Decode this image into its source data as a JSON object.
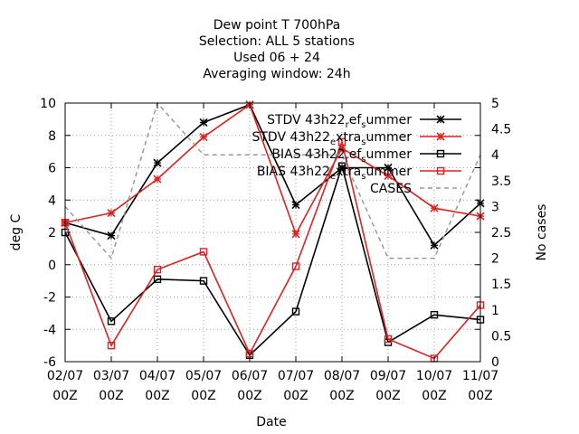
{
  "chart_data": {
    "type": "line",
    "title_lines": [
      "Dew point T 700hPa",
      "Selection: ALL       5 stations",
      "Used  06  + 24",
      "Averaging window: 24h"
    ],
    "xlabel": "Date",
    "ylabel": "deg C",
    "y2label": "No cases",
    "x_ticks": [
      {
        "date": "02/07",
        "time": "00Z"
      },
      {
        "date": "03/07",
        "time": "00Z"
      },
      {
        "date": "04/07",
        "time": "00Z"
      },
      {
        "date": "05/07",
        "time": "00Z"
      },
      {
        "date": "06/07",
        "time": "00Z"
      },
      {
        "date": "07/07",
        "time": "00Z"
      },
      {
        "date": "08/07",
        "time": "00Z"
      },
      {
        "date": "09/07",
        "time": "00Z"
      },
      {
        "date": "10/07",
        "time": "00Z"
      },
      {
        "date": "11/07",
        "time": "00Z"
      }
    ],
    "ylim": [
      -6,
      10
    ],
    "y_ticks": [
      "-6",
      "-4",
      "-2",
      "0",
      "2",
      "4",
      "6",
      "8",
      "10"
    ],
    "y2lim": [
      0,
      5
    ],
    "y2_ticks": [
      "0",
      "0.5",
      "1",
      "1.5",
      "2",
      "2.5",
      "3",
      "3.5",
      "4",
      "4.5",
      "5"
    ],
    "grid": true,
    "legend_position": "top-right",
    "series": [
      {
        "name": "STDV 43h22 ref summer",
        "legend_parts": [
          [
            "STDV 43h22",
            "n"
          ],
          [
            "r",
            "sub"
          ],
          [
            "ef",
            "n"
          ],
          [
            "s",
            "sub"
          ],
          [
            "ummer",
            "n"
          ]
        ],
        "color": "#000000",
        "marker": "x",
        "dash": false,
        "axis": "y1",
        "x": [
          0,
          1,
          2,
          3,
          4,
          5,
          6,
          7,
          8,
          9
        ],
        "values": [
          2.6,
          1.8,
          6.3,
          8.8,
          9.9,
          3.7,
          6.0,
          6.0,
          1.2,
          3.8
        ]
      },
      {
        "name": "STDV 43h22 extra summer",
        "legend_parts": [
          [
            "STDV 43h22",
            "n"
          ],
          [
            "e",
            "sub"
          ],
          [
            "xtra",
            "n"
          ],
          [
            "s",
            "sub"
          ],
          [
            "ummer",
            "n"
          ]
        ],
        "color": "#dd2222",
        "marker": "x",
        "dash": false,
        "axis": "y1",
        "x": [
          0,
          1,
          2,
          3,
          4,
          5,
          6,
          7,
          8,
          9
        ],
        "values": [
          2.6,
          3.2,
          5.3,
          7.9,
          9.9,
          1.9,
          7.2,
          5.5,
          3.5,
          3.0
        ]
      },
      {
        "name": "BIAS 43h22 ref summer",
        "legend_parts": [
          [
            "BIAS 43h22",
            "n"
          ],
          [
            "r",
            "sub"
          ],
          [
            "ef",
            "n"
          ],
          [
            "s",
            "sub"
          ],
          [
            "ummer",
            "n"
          ]
        ],
        "color": "#000000",
        "marker": "square",
        "dash": false,
        "axis": "y1",
        "x": [
          0,
          1,
          2,
          3,
          4,
          5,
          6,
          7,
          8,
          9
        ],
        "values": [
          2.0,
          -3.5,
          -0.9,
          -1.0,
          -5.6,
          -2.9,
          6.1,
          -4.8,
          -3.1,
          -3.4
        ]
      },
      {
        "name": "BIAS 43h22 extra summer",
        "legend_parts": [
          [
            "BIAS 43h22",
            "n"
          ],
          [
            "e",
            "sub"
          ],
          [
            "xtra",
            "n"
          ],
          [
            "s",
            "sub"
          ],
          [
            "ummer",
            "n"
          ]
        ],
        "color": "#dd2222",
        "marker": "square",
        "dash": false,
        "axis": "y1",
        "x": [
          0,
          1,
          2,
          3,
          4,
          5,
          6,
          7,
          8,
          9
        ],
        "values": [
          2.6,
          -5.0,
          -0.3,
          0.8,
          -5.5,
          -0.1,
          7.6,
          -4.6,
          -5.8,
          -2.5
        ]
      },
      {
        "name": "CASES",
        "legend_parts": [
          [
            "CASES",
            "n"
          ]
        ],
        "color": "#999999",
        "marker": "none",
        "dash": true,
        "axis": "y2",
        "x": [
          0,
          1,
          2,
          3,
          4,
          5,
          6,
          7,
          8,
          9
        ],
        "values": [
          3,
          2,
          5,
          4,
          4,
          4,
          4,
          2,
          2,
          4
        ]
      }
    ]
  }
}
